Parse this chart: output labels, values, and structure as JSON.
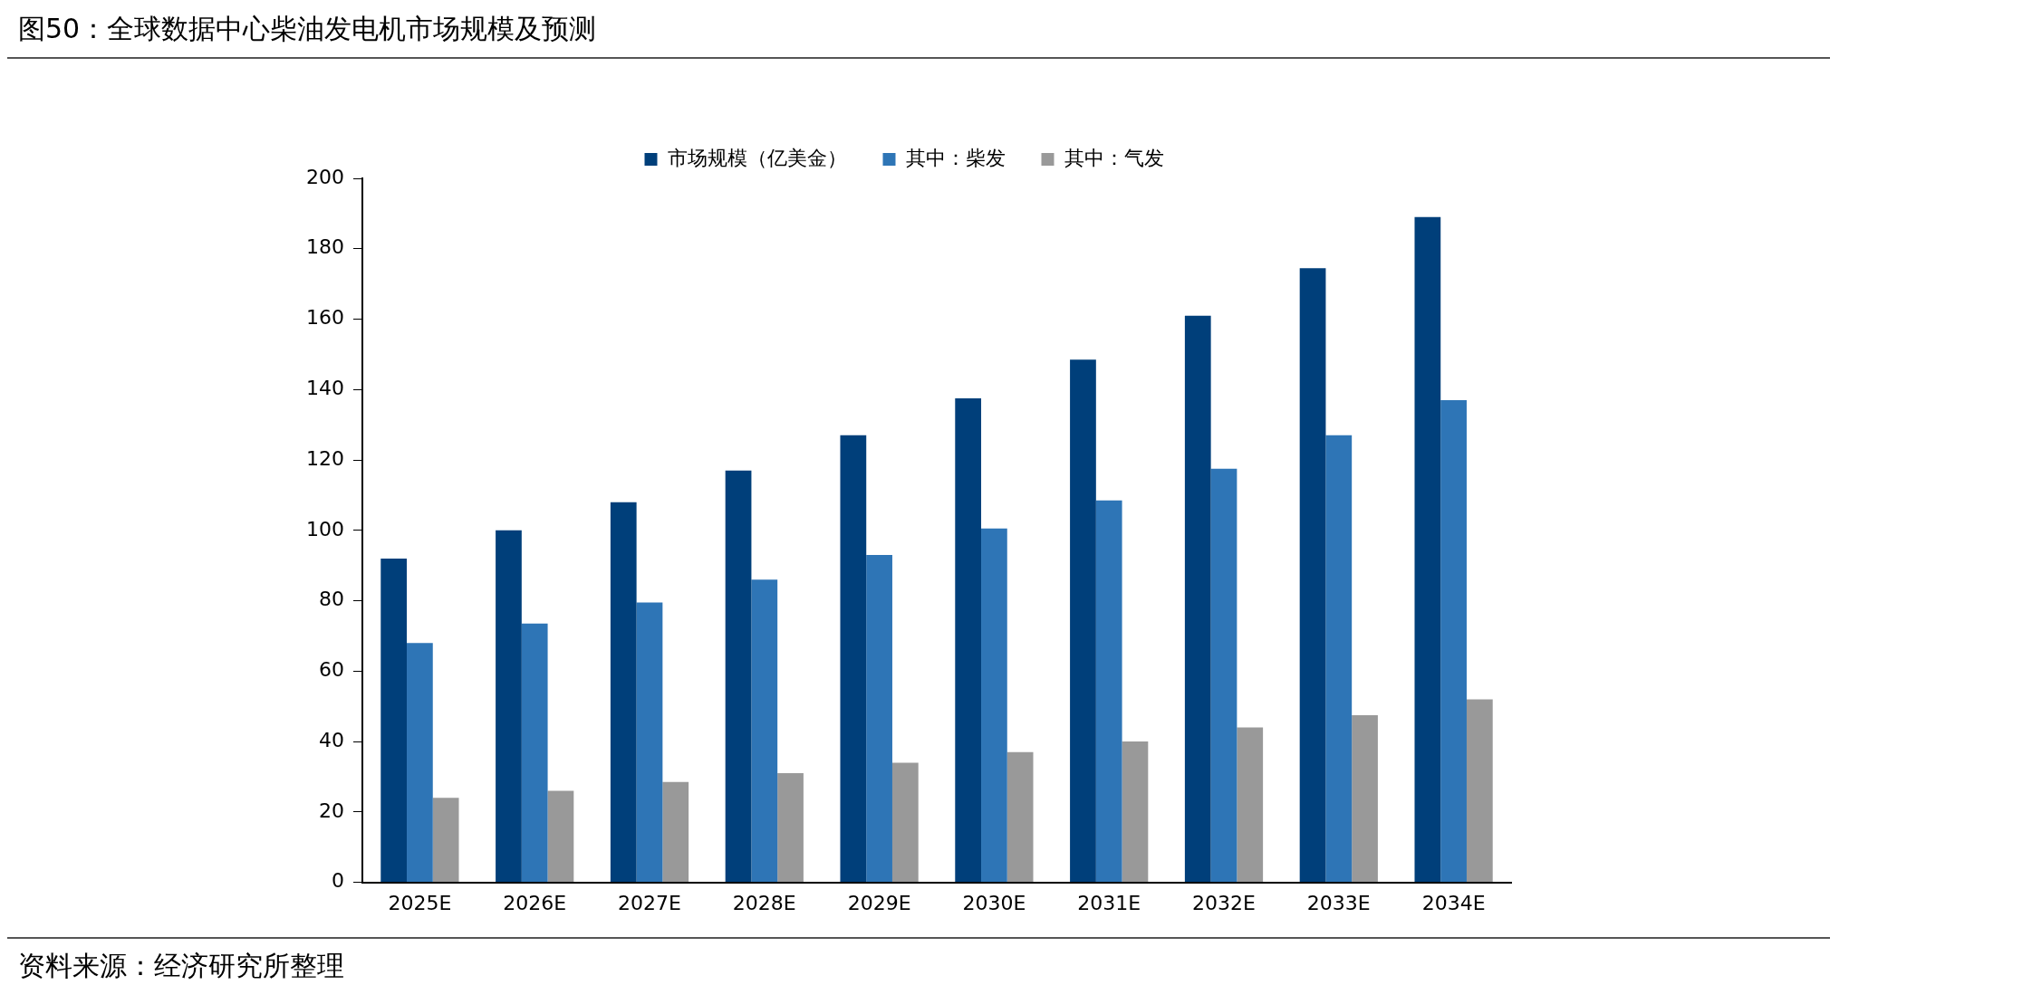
{
  "chart_data": {
    "type": "bar",
    "title": "图50：全球数据中心柴油发电机市场规模及预测",
    "annotations": [
      "资料来源：经济研究所整理"
    ],
    "categories": [
      "2025E",
      "2026E",
      "2027E",
      "2028E",
      "2029E",
      "2030E",
      "2031E",
      "2032E",
      "2033E",
      "2034E"
    ],
    "series": [
      {
        "name": "市场规模（亿美金）",
        "color": "#003f7a",
        "values": [
          92,
          100,
          108,
          117,
          127,
          137.5,
          148.5,
          161,
          174.5,
          189
        ]
      },
      {
        "name": "其中：柴发",
        "color": "#2e75b6",
        "values": [
          68,
          73.5,
          79.5,
          86,
          93,
          100.5,
          108.5,
          117.5,
          127,
          137
        ]
      },
      {
        "name": "其中：气发",
        "color": "#999999",
        "values": [
          24,
          26,
          28.5,
          31,
          34,
          37,
          40,
          44,
          47.5,
          52
        ]
      }
    ],
    "ylim": [
      0,
      200
    ],
    "yticks": [
      0,
      20,
      40,
      60,
      80,
      100,
      120,
      140,
      160,
      180,
      200
    ],
    "grid": false,
    "legend": "top"
  }
}
